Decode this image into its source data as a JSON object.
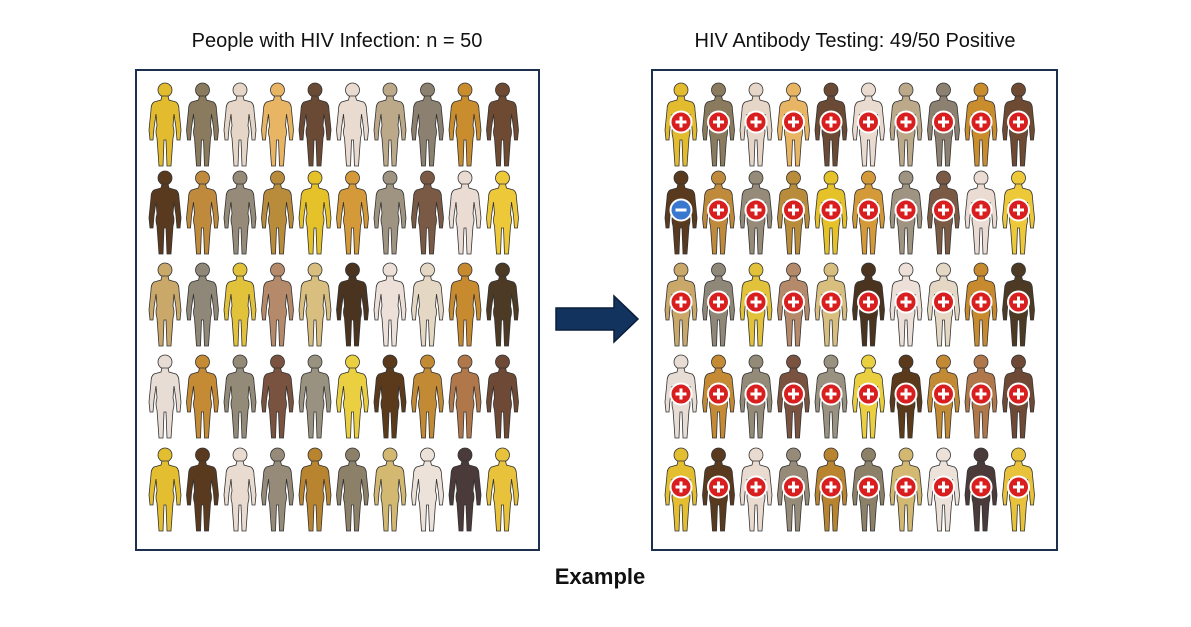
{
  "left_panel": {
    "title": "People with HIV Infection: n = 50"
  },
  "right_panel": {
    "title": "HIV Antibody Testing: 49/50 Positive"
  },
  "caption": "Example"
}
